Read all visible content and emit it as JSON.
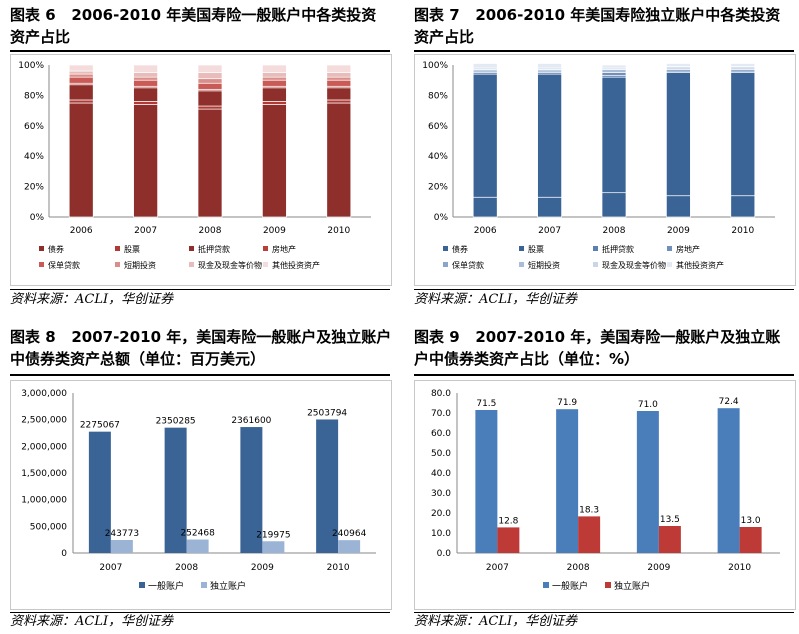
{
  "panels": [
    {
      "title": "图表 6   2006-2010 年美国寿险一般账户中各类投资资产占比",
      "source": "资料来源：ACLI，华创证券",
      "chart_data": {
        "type": "bar",
        "stacked": true,
        "categories": [
          "2006",
          "2007",
          "2008",
          "2009",
          "2010"
        ],
        "yticks": [
          "0%",
          "20%",
          "40%",
          "60%",
          "80%",
          "100%"
        ],
        "ylim": [
          0,
          100
        ],
        "series": [
          {
            "name": "债券",
            "color": "#8e2f2b",
            "values": [
              75,
              74,
              71,
              74,
              75
            ]
          },
          {
            "name": "股票",
            "color": "#b03a34",
            "values": [
              2,
              2,
              2,
              2,
              2
            ]
          },
          {
            "name": "抵押贷款",
            "color": "#8e2f2b",
            "values": [
              10,
              9,
              10,
              9,
              8
            ]
          },
          {
            "name": "房地产",
            "color": "#b7413a",
            "values": [
              1,
              1,
              1,
              1,
              1
            ]
          },
          {
            "name": "保单贷款",
            "color": "#c95a55",
            "values": [
              4,
              4,
              4,
              4,
              4
            ]
          },
          {
            "name": "短期投资",
            "color": "#d98e8a",
            "values": [
              2,
              2,
              3,
              2,
              2
            ]
          },
          {
            "name": "现金及现金等价物",
            "color": "#e8bcba",
            "values": [
              2,
              3,
              4,
              3,
              3
            ]
          },
          {
            "name": "其他投资资产",
            "color": "#f3dcdb",
            "values": [
              4,
              5,
              5,
              5,
              5
            ]
          }
        ]
      }
    },
    {
      "title": "图表 7   2006-2010 年美国寿险独立账户中各类投资资产占比",
      "source": "资料来源：ACLI，华创证券",
      "chart_data": {
        "type": "bar",
        "stacked": true,
        "categories": [
          "2006",
          "2007",
          "2008",
          "2009",
          "2010"
        ],
        "yticks": [
          "0%",
          "20%",
          "40%",
          "60%",
          "80%",
          "100%"
        ],
        "ylim": [
          0,
          100
        ],
        "series": [
          {
            "name": "债券",
            "color": "#3b6496",
            "values": [
              13,
              13,
              16,
              14,
              14
            ]
          },
          {
            "name": "股票",
            "color": "#3b6496",
            "values": [
              81,
              81,
              76,
              81,
              81
            ]
          },
          {
            "name": "抵押贷款",
            "color": "#5a7fb0",
            "values": [
              1,
              1,
              1,
              1,
              1
            ]
          },
          {
            "name": "房地产",
            "color": "#7090bb",
            "values": [
              1,
              1,
              2,
              1,
              1
            ]
          },
          {
            "name": "保单贷款",
            "color": "#8aa5c9",
            "values": [
              0,
              0,
              0,
              0,
              0
            ]
          },
          {
            "name": "短期投资",
            "color": "#a9bdd8",
            "values": [
              1,
              1,
              2,
              1,
              1
            ]
          },
          {
            "name": "现金及现金等价物",
            "color": "#c9d6e8",
            "values": [
              1,
              1,
              1,
              1,
              1
            ]
          },
          {
            "name": "其他投资资产",
            "color": "#e3eaf4",
            "values": [
              3,
              3,
              2,
              2,
              2
            ]
          }
        ]
      }
    },
    {
      "title": "图表 8   2007-2010 年，美国寿险一般账户及独立账户中债券类资产总额（单位：百万美元）",
      "source": "资料来源：ACLI，华创证券",
      "chart_data": {
        "type": "bar",
        "categories": [
          "2007",
          "2008",
          "2009",
          "2010"
        ],
        "yticks": [
          "0",
          "500,000",
          "1,000,000",
          "1,500,000",
          "2,000,000",
          "2,500,000",
          "3,000,000"
        ],
        "ylim": [
          0,
          3000000
        ],
        "series": [
          {
            "name": "一般账户",
            "color": "#3b6496",
            "values": [
              2275067,
              2350285,
              2361600,
              2503794
            ],
            "labels": [
              "2275067",
              "2350285",
              "2361600",
              "2503794"
            ]
          },
          {
            "name": "独立账户",
            "color": "#9bb4d6",
            "values": [
              243773,
              252468,
              219975,
              240964
            ],
            "labels": [
              "243773",
              "252468",
              "219975",
              "240964"
            ]
          }
        ]
      }
    },
    {
      "title": "图表 9   2007-2010 年，美国寿险一般账户及独立账户中债券类资产占比（单位：%）",
      "source": "资料来源：ACLI，华创证券",
      "chart_data": {
        "type": "bar",
        "categories": [
          "2007",
          "2008",
          "2009",
          "2010"
        ],
        "yticks": [
          "0.0",
          "10.0",
          "20.0",
          "30.0",
          "40.0",
          "50.0",
          "60.0",
          "70.0",
          "80.0"
        ],
        "ylim": [
          0,
          80
        ],
        "series": [
          {
            "name": "一般账户",
            "color": "#4a7ebb",
            "values": [
              71.5,
              71.9,
              71.0,
              72.4
            ],
            "labels": [
              "71.5",
              "71.9",
              "71.0",
              "72.4"
            ]
          },
          {
            "name": "独立账户",
            "color": "#be3a36",
            "values": [
              12.8,
              18.3,
              13.5,
              13.0
            ],
            "labels": [
              "12.8",
              "18.3",
              "13.5",
              "13.0"
            ]
          }
        ]
      }
    }
  ]
}
